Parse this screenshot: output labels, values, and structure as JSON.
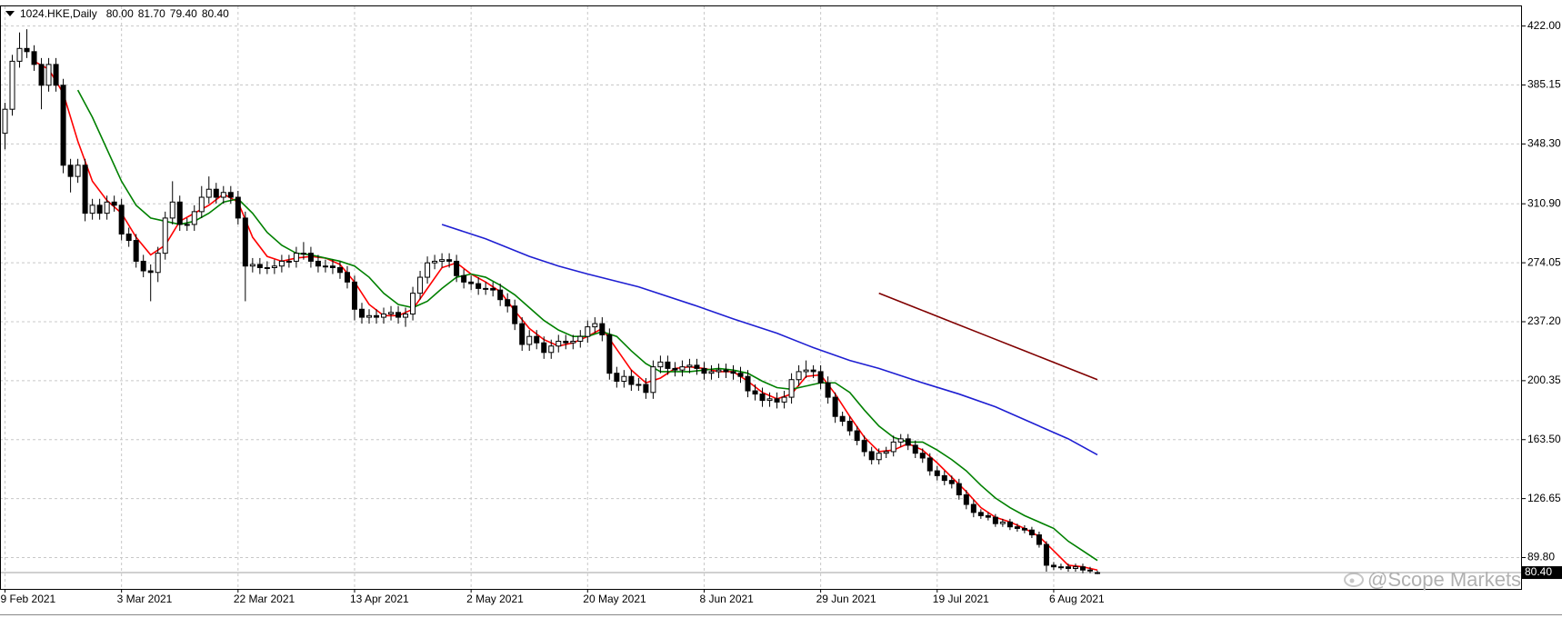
{
  "chart_data": {
    "type": "candlestick",
    "title": "1024.HKE,Daily",
    "title_values": [
      "80.00",
      "81.70",
      "79.40",
      "80.40"
    ],
    "watermark": "@Scope Markets",
    "categories": [
      "9 Feb 2021",
      null,
      null,
      null,
      null,
      null,
      null,
      null,
      null,
      null,
      null,
      null,
      null,
      null,
      null,
      null,
      "3 Mar 2021",
      null,
      null,
      null,
      null,
      null,
      null,
      null,
      null,
      null,
      null,
      null,
      null,
      null,
      null,
      null,
      "22 Mar 2021",
      null,
      null,
      null,
      null,
      null,
      null,
      null,
      null,
      null,
      null,
      null,
      null,
      null,
      null,
      null,
      "13 Apr 2021",
      null,
      null,
      null,
      null,
      null,
      null,
      null,
      null,
      null,
      null,
      null,
      null,
      null,
      null,
      null,
      "2 May 2021",
      null,
      null,
      null,
      null,
      null,
      null,
      null,
      null,
      null,
      null,
      null,
      null,
      null,
      null,
      null,
      "20 May 2021",
      null,
      null,
      null,
      null,
      null,
      null,
      null,
      null,
      null,
      null,
      null,
      null,
      null,
      null,
      null,
      "8 Jun 2021",
      null,
      null,
      null,
      null,
      null,
      null,
      null,
      null,
      null,
      null,
      null,
      null,
      null,
      null,
      null,
      "29 Jun 2021",
      null,
      null,
      null,
      null,
      null,
      null,
      null,
      null,
      null,
      null,
      null,
      null,
      null,
      null,
      null,
      "19 Jul 2021",
      null,
      null,
      null,
      null,
      null,
      null,
      null,
      null,
      null,
      null,
      null,
      null,
      null,
      null,
      null,
      "6 Aug 2021",
      null,
      null,
      null,
      null,
      null,
      null
    ],
    "open": [
      355,
      370,
      400,
      408,
      406,
      398,
      385,
      398,
      385,
      335,
      328,
      335,
      305,
      310,
      305,
      312,
      310,
      292,
      288,
      275,
      269,
      268,
      280,
      302,
      312,
      298,
      298,
      306,
      315,
      320,
      315,
      318,
      315,
      302,
      272,
      273,
      271,
      271,
      272,
      275,
      275,
      280,
      280,
      275,
      272,
      272,
      271,
      268,
      262,
      245,
      240,
      241,
      240,
      242,
      243,
      240,
      242,
      255,
      265,
      274,
      275,
      276,
      275,
      266,
      262,
      261,
      258,
      258,
      257,
      251,
      247,
      236,
      223,
      228,
      224,
      218,
      222,
      225,
      224,
      225,
      228,
      234,
      236,
      229,
      205,
      200,
      203,
      198,
      198,
      193,
      209,
      212,
      208,
      207,
      209,
      210,
      208,
      205,
      206,
      207,
      206,
      205,
      203,
      194,
      192,
      188,
      189,
      187,
      190,
      201,
      206,
      207,
      206,
      199,
      190,
      178,
      175,
      169,
      163,
      156,
      151,
      155,
      156,
      162,
      164,
      160,
      155,
      152,
      144,
      141,
      138,
      136,
      129,
      123,
      118,
      116,
      115,
      111,
      112,
      109,
      108,
      107,
      104,
      98,
      85,
      84,
      84,
      83,
      84,
      82,
      80
    ],
    "high": [
      374,
      404,
      418,
      420,
      410,
      402,
      402,
      402,
      389,
      339,
      339,
      339,
      314,
      314,
      316,
      316,
      314,
      296,
      292,
      279,
      273,
      284,
      306,
      325,
      316,
      302,
      310,
      322,
      328,
      324,
      322,
      322,
      319,
      306,
      277,
      277,
      275,
      276,
      279,
      279,
      284,
      287,
      284,
      279,
      276,
      276,
      275,
      272,
      266,
      249,
      245,
      245,
      246,
      247,
      247,
      246,
      259,
      269,
      278,
      279,
      280,
      280,
      279,
      270,
      266,
      265,
      262,
      262,
      261,
      255,
      251,
      240,
      232,
      232,
      228,
      226,
      229,
      229,
      229,
      232,
      238,
      240,
      240,
      233,
      209,
      207,
      207,
      202,
      202,
      213,
      216,
      216,
      212,
      213,
      214,
      214,
      212,
      210,
      211,
      211,
      210,
      209,
      207,
      198,
      196,
      193,
      193,
      194,
      205,
      210,
      213,
      210,
      210,
      203,
      193,
      181,
      178,
      172,
      166,
      159,
      158,
      159,
      166,
      167,
      167,
      163,
      158,
      155,
      147,
      144,
      141,
      139,
      132,
      126,
      120,
      118,
      117,
      114,
      114,
      111,
      110,
      109,
      106,
      100,
      87,
      86,
      86,
      86,
      86,
      84,
      81.7
    ],
    "low": [
      345,
      366,
      396,
      402,
      394,
      370,
      381,
      381,
      330,
      318,
      324,
      300,
      301,
      301,
      301,
      306,
      288,
      284,
      271,
      265,
      250,
      262,
      276,
      298,
      294,
      294,
      294,
      302,
      311,
      311,
      311,
      311,
      298,
      250,
      268,
      267,
      267,
      267,
      268,
      271,
      271,
      276,
      271,
      268,
      268,
      267,
      264,
      258,
      238,
      236,
      236,
      236,
      236,
      238,
      236,
      234,
      238,
      251,
      261,
      270,
      271,
      271,
      262,
      258,
      257,
      254,
      254,
      253,
      247,
      243,
      232,
      219,
      219,
      220,
      214,
      214,
      218,
      220,
      220,
      221,
      224,
      230,
      225,
      201,
      196,
      196,
      194,
      194,
      189,
      189,
      205,
      204,
      203,
      203,
      205,
      204,
      201,
      201,
      202,
      202,
      201,
      199,
      190,
      188,
      184,
      184,
      183,
      183,
      186,
      197,
      202,
      202,
      195,
      186,
      174,
      172,
      166,
      160,
      153,
      148,
      148,
      152,
      153,
      159,
      157,
      152,
      149,
      141,
      138,
      135,
      133,
      126,
      120,
      115,
      114,
      113,
      109,
      109,
      107,
      106,
      105,
      102,
      96,
      81,
      82,
      82,
      81,
      81,
      80,
      80,
      79.4
    ],
    "close": [
      370,
      400,
      408,
      406,
      398,
      385,
      398,
      385,
      335,
      328,
      335,
      305,
      310,
      305,
      312,
      310,
      292,
      288,
      275,
      269,
      268,
      280,
      302,
      312,
      298,
      298,
      306,
      315,
      320,
      315,
      318,
      315,
      302,
      272,
      273,
      271,
      271,
      272,
      275,
      275,
      280,
      280,
      275,
      272,
      272,
      271,
      268,
      262,
      245,
      240,
      241,
      240,
      242,
      243,
      240,
      242,
      255,
      265,
      274,
      275,
      276,
      275,
      266,
      262,
      261,
      258,
      258,
      257,
      251,
      247,
      236,
      223,
      228,
      224,
      218,
      222,
      225,
      224,
      225,
      228,
      234,
      236,
      229,
      205,
      200,
      203,
      198,
      198,
      193,
      209,
      212,
      208,
      207,
      209,
      210,
      208,
      205,
      206,
      207,
      206,
      205,
      203,
      194,
      192,
      188,
      189,
      187,
      190,
      201,
      206,
      207,
      206,
      199,
      190,
      178,
      175,
      169,
      163,
      156,
      151,
      155,
      156,
      162,
      164,
      160,
      155,
      152,
      144,
      141,
      138,
      136,
      129,
      123,
      118,
      116,
      115,
      111,
      112,
      109,
      108,
      107,
      104,
      98,
      85,
      84,
      84,
      83,
      84,
      82,
      82,
      80.4
    ],
    "up_color": "#ffffff",
    "down_color": "#000000",
    "overlays": [
      {
        "color": "#ff0000",
        "x": [
          4,
          6,
          8,
          10,
          12,
          14,
          16,
          18,
          20,
          22,
          24,
          26,
          28,
          30,
          32,
          34,
          36,
          38,
          40,
          42,
          44,
          46,
          48,
          50,
          52,
          54,
          56,
          58,
          60,
          62,
          64,
          66,
          68,
          70,
          72,
          74,
          76,
          78,
          80,
          82,
          84,
          86,
          88,
          90,
          92,
          94,
          96,
          98,
          100,
          102,
          104,
          106,
          108,
          110,
          112,
          114,
          116,
          118,
          120,
          122,
          124,
          126,
          128,
          130,
          132,
          134,
          136,
          138,
          140,
          142,
          144,
          146,
          148,
          150
        ],
        "values": [
          400,
          395,
          380,
          350,
          325,
          313,
          305,
          290,
          279,
          285,
          300,
          305,
          310,
          317,
          312,
          290,
          278,
          275,
          277,
          278,
          277,
          273,
          262,
          248,
          241,
          241,
          245,
          258,
          271,
          274,
          267,
          262,
          256,
          244,
          233,
          226,
          222,
          224,
          228,
          233,
          220,
          207,
          199,
          202,
          208,
          209,
          208,
          206,
          206,
          200,
          193,
          189,
          192,
          203,
          204,
          192,
          178,
          165,
          156,
          157,
          161,
          157,
          149,
          140,
          131,
          121,
          115,
          112,
          108,
          103,
          94,
          85,
          84,
          82
        ]
      },
      {
        "color": "#008000",
        "x": [
          10,
          12,
          14,
          16,
          18,
          20,
          22,
          24,
          26,
          28,
          30,
          32,
          34,
          36,
          38,
          40,
          42,
          44,
          46,
          48,
          50,
          52,
          54,
          56,
          58,
          60,
          62,
          64,
          66,
          68,
          70,
          72,
          74,
          76,
          78,
          80,
          82,
          84,
          86,
          88,
          90,
          92,
          94,
          96,
          98,
          100,
          102,
          104,
          106,
          108,
          110,
          112,
          114,
          116,
          118,
          120,
          122,
          124,
          126,
          128,
          130,
          132,
          134,
          136,
          138,
          140,
          142,
          144,
          146,
          148,
          150
        ],
        "values": [
          382,
          365,
          345,
          325,
          310,
          302,
          300,
          298,
          300,
          305,
          312,
          314,
          305,
          293,
          285,
          280,
          279,
          277,
          275,
          272,
          265,
          255,
          248,
          246,
          250,
          258,
          265,
          267,
          265,
          260,
          254,
          246,
          238,
          232,
          228,
          228,
          231,
          228,
          219,
          211,
          206,
          206,
          206,
          207,
          208,
          207,
          205,
          200,
          196,
          195,
          197,
          199,
          199,
          193,
          182,
          172,
          165,
          162,
          162,
          157,
          151,
          144,
          135,
          127,
          121,
          116,
          112,
          108,
          100,
          94,
          88
        ]
      },
      {
        "color": "#1e1ed2",
        "x": [
          60,
          66,
          72,
          76,
          80,
          87,
          95,
          100,
          106,
          111,
          116,
          120,
          126,
          131,
          136,
          141,
          146,
          150
        ],
        "values": [
          298,
          289,
          278,
          272,
          267,
          259,
          247,
          239,
          230,
          221,
          213,
          208,
          199,
          192,
          184,
          174,
          164,
          154
        ]
      },
      {
        "color": "#800000",
        "x": [
          120,
          125,
          130,
          135,
          140,
          145,
          150
        ],
        "values": [
          255,
          246,
          237,
          228,
          219,
          210,
          201
        ]
      }
    ],
    "ylim": [
      70.2,
      434.3
    ],
    "yticks": [
      {
        "value": 89.8,
        "label": "89.80"
      },
      {
        "value": 126.65,
        "label": "126.65"
      },
      {
        "value": 163.5,
        "label": "163.50"
      },
      {
        "value": 200.35,
        "label": "200.35"
      },
      {
        "value": 237.2,
        "label": "237.20"
      },
      {
        "value": 274.05,
        "label": "274.05"
      },
      {
        "value": 310.9,
        "label": "310.90"
      },
      {
        "value": 348.3,
        "label": "348.30"
      },
      {
        "value": 385.15,
        "label": "385.15"
      },
      {
        "value": 422,
        "label": "422.00"
      }
    ],
    "grid": true
  }
}
